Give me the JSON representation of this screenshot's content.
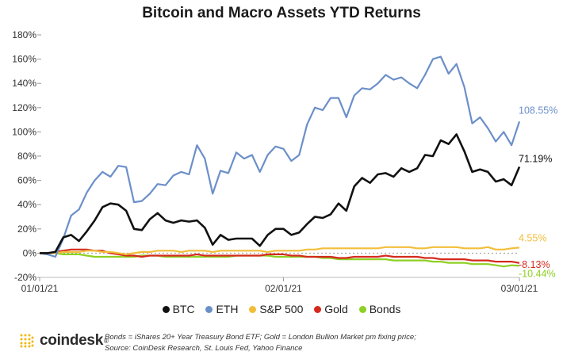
{
  "chart_data": {
    "type": "line",
    "title": "Bitcoin and Macro Assets YTD Returns",
    "ylim": [
      -20,
      180
    ],
    "yticks": [
      "180%",
      "160%",
      "140%",
      "120%",
      "100%",
      "80%",
      "60%",
      "40%",
      "20%",
      "0%",
      "-20%"
    ],
    "xticks": [
      "01/01/21",
      "02/01/21",
      "03/01/21"
    ],
    "grid": false,
    "legend_position": "bottom",
    "series": [
      {
        "name": "ETH",
        "color": "#6b8fc9",
        "end_label": "108.55%",
        "values": [
          0,
          -1,
          -3,
          12,
          31,
          36,
          50,
          60,
          67,
          63,
          72,
          71,
          42,
          43,
          49,
          57,
          56,
          64,
          67,
          65,
          89,
          78,
          49,
          68,
          66,
          83,
          78,
          81,
          67,
          81,
          88,
          86,
          76,
          81,
          106,
          120,
          118,
          128,
          128,
          112,
          130,
          136,
          135,
          140,
          147,
          143,
          145,
          140,
          136,
          147,
          160,
          162,
          148,
          156,
          137,
          107,
          112,
          103,
          92,
          100,
          89,
          108.55
        ]
      },
      {
        "name": "BTC",
        "color": "#111111",
        "end_label": "71.19%",
        "values": [
          0,
          0,
          1,
          13,
          15,
          10,
          18,
          27,
          38,
          41,
          40,
          35,
          20,
          19,
          28,
          33,
          27,
          25,
          27,
          26,
          27,
          21,
          7,
          15,
          11,
          12,
          12,
          12,
          6,
          15,
          20,
          20,
          15,
          17,
          24,
          30,
          29,
          32,
          41,
          35,
          55,
          62,
          58,
          65,
          66,
          63,
          70,
          67,
          70,
          81,
          80,
          93,
          90,
          98,
          84,
          67,
          69,
          67,
          59,
          61,
          56,
          71.19
        ]
      },
      {
        "name": "S&P 500",
        "color": "#f2be3a",
        "end_label": "4.55%",
        "values": [
          0,
          0,
          0,
          1,
          1,
          1,
          2,
          2,
          1,
          1,
          0,
          -1,
          0,
          1,
          1,
          2,
          2,
          2,
          1,
          2,
          2,
          2,
          1,
          2,
          2,
          2,
          2,
          2,
          2,
          1,
          2,
          2,
          2,
          2,
          3,
          3,
          4,
          4,
          4,
          4,
          4,
          4,
          4,
          4,
          5,
          5,
          5,
          5,
          4,
          4,
          5,
          5,
          5,
          5,
          4,
          4,
          4,
          5,
          3,
          3,
          4,
          4.55
        ]
      },
      {
        "name": "Gold",
        "color": "#d42a1e",
        "end_label": "-8.13%",
        "values": [
          0,
          0,
          1,
          2,
          3,
          3,
          3,
          2,
          2,
          0,
          -1,
          -2,
          -2,
          -3,
          -2,
          -2,
          -2,
          -2,
          -2,
          -2,
          -1,
          -2,
          -2,
          -2,
          -2,
          -2,
          -2,
          -2,
          -2,
          -1,
          -1,
          -1,
          -2,
          -2,
          -3,
          -3,
          -3,
          -3,
          -4,
          -4,
          -3,
          -3,
          -3,
          -3,
          -2,
          -3,
          -3,
          -3,
          -3,
          -4,
          -4,
          -5,
          -5,
          -5,
          -5,
          -6,
          -6,
          -6,
          -7,
          -7,
          -7,
          -8.13
        ]
      },
      {
        "name": "Bonds",
        "color": "#8ed023",
        "end_label": "-10.44%",
        "values": [
          0,
          0,
          0,
          -1,
          -1,
          -1,
          -2,
          -3,
          -3,
          -3,
          -3,
          -3,
          -3,
          -2,
          -2,
          -2,
          -3,
          -3,
          -3,
          -3,
          -3,
          -3,
          -3,
          -3,
          -3,
          -2,
          -2,
          -2,
          -2,
          -2,
          -3,
          -3,
          -3,
          -3,
          -3,
          -3,
          -4,
          -4,
          -5,
          -5,
          -5,
          -5,
          -5,
          -5,
          -5,
          -6,
          -6,
          -6,
          -6,
          -6,
          -7,
          -7,
          -8,
          -8,
          -8,
          -9,
          -9,
          -9,
          -10,
          -11,
          -10,
          -10.44
        ]
      }
    ]
  },
  "legend": [
    {
      "label": "BTC",
      "color": "#111111"
    },
    {
      "label": "ETH",
      "color": "#6b8fc9"
    },
    {
      "label": "S&P 500",
      "color": "#f2be3a"
    },
    {
      "label": "Gold",
      "color": "#d42a1e"
    },
    {
      "label": "Bonds",
      "color": "#8ed023"
    }
  ],
  "footer": {
    "logo_text": "coindesk",
    "logo_reg": "®",
    "note_line1": "Bonds = iShares 20+ Year Treasury Bond ETF;   Gold = London Bullion Market pm fixing price;",
    "note_line2": "Source: CoinDesk Research, St. Louis Fed, Yahoo Finance",
    "logo_color": "#f2b705"
  }
}
